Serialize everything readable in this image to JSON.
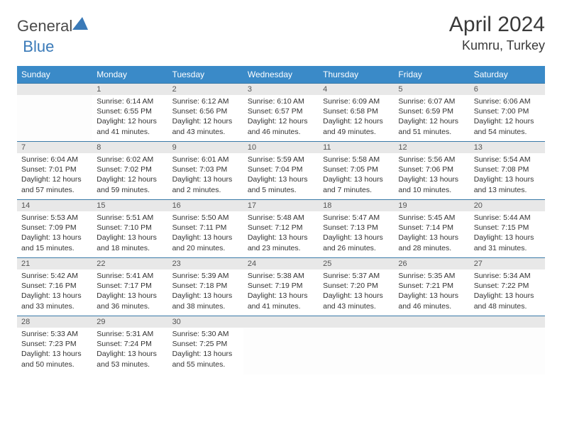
{
  "brand": {
    "part1": "General",
    "part2": "Blue"
  },
  "title": "April 2024",
  "location": "Kumru, Turkey",
  "colors": {
    "header_bg": "#3a8ac8",
    "border": "#3a7aa8",
    "daynum_bg": "#e8e8e8",
    "text": "#333333"
  },
  "weekdays": [
    "Sunday",
    "Monday",
    "Tuesday",
    "Wednesday",
    "Thursday",
    "Friday",
    "Saturday"
  ],
  "weeks": [
    [
      {
        "n": "",
        "sr": "",
        "ss": "",
        "dl": ""
      },
      {
        "n": "1",
        "sr": "Sunrise: 6:14 AM",
        "ss": "Sunset: 6:55 PM",
        "dl": "Daylight: 12 hours and 41 minutes."
      },
      {
        "n": "2",
        "sr": "Sunrise: 6:12 AM",
        "ss": "Sunset: 6:56 PM",
        "dl": "Daylight: 12 hours and 43 minutes."
      },
      {
        "n": "3",
        "sr": "Sunrise: 6:10 AM",
        "ss": "Sunset: 6:57 PM",
        "dl": "Daylight: 12 hours and 46 minutes."
      },
      {
        "n": "4",
        "sr": "Sunrise: 6:09 AM",
        "ss": "Sunset: 6:58 PM",
        "dl": "Daylight: 12 hours and 49 minutes."
      },
      {
        "n": "5",
        "sr": "Sunrise: 6:07 AM",
        "ss": "Sunset: 6:59 PM",
        "dl": "Daylight: 12 hours and 51 minutes."
      },
      {
        "n": "6",
        "sr": "Sunrise: 6:06 AM",
        "ss": "Sunset: 7:00 PM",
        "dl": "Daylight: 12 hours and 54 minutes."
      }
    ],
    [
      {
        "n": "7",
        "sr": "Sunrise: 6:04 AM",
        "ss": "Sunset: 7:01 PM",
        "dl": "Daylight: 12 hours and 57 minutes."
      },
      {
        "n": "8",
        "sr": "Sunrise: 6:02 AM",
        "ss": "Sunset: 7:02 PM",
        "dl": "Daylight: 12 hours and 59 minutes."
      },
      {
        "n": "9",
        "sr": "Sunrise: 6:01 AM",
        "ss": "Sunset: 7:03 PM",
        "dl": "Daylight: 13 hours and 2 minutes."
      },
      {
        "n": "10",
        "sr": "Sunrise: 5:59 AM",
        "ss": "Sunset: 7:04 PM",
        "dl": "Daylight: 13 hours and 5 minutes."
      },
      {
        "n": "11",
        "sr": "Sunrise: 5:58 AM",
        "ss": "Sunset: 7:05 PM",
        "dl": "Daylight: 13 hours and 7 minutes."
      },
      {
        "n": "12",
        "sr": "Sunrise: 5:56 AM",
        "ss": "Sunset: 7:06 PM",
        "dl": "Daylight: 13 hours and 10 minutes."
      },
      {
        "n": "13",
        "sr": "Sunrise: 5:54 AM",
        "ss": "Sunset: 7:08 PM",
        "dl": "Daylight: 13 hours and 13 minutes."
      }
    ],
    [
      {
        "n": "14",
        "sr": "Sunrise: 5:53 AM",
        "ss": "Sunset: 7:09 PM",
        "dl": "Daylight: 13 hours and 15 minutes."
      },
      {
        "n": "15",
        "sr": "Sunrise: 5:51 AM",
        "ss": "Sunset: 7:10 PM",
        "dl": "Daylight: 13 hours and 18 minutes."
      },
      {
        "n": "16",
        "sr": "Sunrise: 5:50 AM",
        "ss": "Sunset: 7:11 PM",
        "dl": "Daylight: 13 hours and 20 minutes."
      },
      {
        "n": "17",
        "sr": "Sunrise: 5:48 AM",
        "ss": "Sunset: 7:12 PM",
        "dl": "Daylight: 13 hours and 23 minutes."
      },
      {
        "n": "18",
        "sr": "Sunrise: 5:47 AM",
        "ss": "Sunset: 7:13 PM",
        "dl": "Daylight: 13 hours and 26 minutes."
      },
      {
        "n": "19",
        "sr": "Sunrise: 5:45 AM",
        "ss": "Sunset: 7:14 PM",
        "dl": "Daylight: 13 hours and 28 minutes."
      },
      {
        "n": "20",
        "sr": "Sunrise: 5:44 AM",
        "ss": "Sunset: 7:15 PM",
        "dl": "Daylight: 13 hours and 31 minutes."
      }
    ],
    [
      {
        "n": "21",
        "sr": "Sunrise: 5:42 AM",
        "ss": "Sunset: 7:16 PM",
        "dl": "Daylight: 13 hours and 33 minutes."
      },
      {
        "n": "22",
        "sr": "Sunrise: 5:41 AM",
        "ss": "Sunset: 7:17 PM",
        "dl": "Daylight: 13 hours and 36 minutes."
      },
      {
        "n": "23",
        "sr": "Sunrise: 5:39 AM",
        "ss": "Sunset: 7:18 PM",
        "dl": "Daylight: 13 hours and 38 minutes."
      },
      {
        "n": "24",
        "sr": "Sunrise: 5:38 AM",
        "ss": "Sunset: 7:19 PM",
        "dl": "Daylight: 13 hours and 41 minutes."
      },
      {
        "n": "25",
        "sr": "Sunrise: 5:37 AM",
        "ss": "Sunset: 7:20 PM",
        "dl": "Daylight: 13 hours and 43 minutes."
      },
      {
        "n": "26",
        "sr": "Sunrise: 5:35 AM",
        "ss": "Sunset: 7:21 PM",
        "dl": "Daylight: 13 hours and 46 minutes."
      },
      {
        "n": "27",
        "sr": "Sunrise: 5:34 AM",
        "ss": "Sunset: 7:22 PM",
        "dl": "Daylight: 13 hours and 48 minutes."
      }
    ],
    [
      {
        "n": "28",
        "sr": "Sunrise: 5:33 AM",
        "ss": "Sunset: 7:23 PM",
        "dl": "Daylight: 13 hours and 50 minutes."
      },
      {
        "n": "29",
        "sr": "Sunrise: 5:31 AM",
        "ss": "Sunset: 7:24 PM",
        "dl": "Daylight: 13 hours and 53 minutes."
      },
      {
        "n": "30",
        "sr": "Sunrise: 5:30 AM",
        "ss": "Sunset: 7:25 PM",
        "dl": "Daylight: 13 hours and 55 minutes."
      },
      {
        "n": "",
        "sr": "",
        "ss": "",
        "dl": ""
      },
      {
        "n": "",
        "sr": "",
        "ss": "",
        "dl": ""
      },
      {
        "n": "",
        "sr": "",
        "ss": "",
        "dl": ""
      },
      {
        "n": "",
        "sr": "",
        "ss": "",
        "dl": ""
      }
    ]
  ]
}
